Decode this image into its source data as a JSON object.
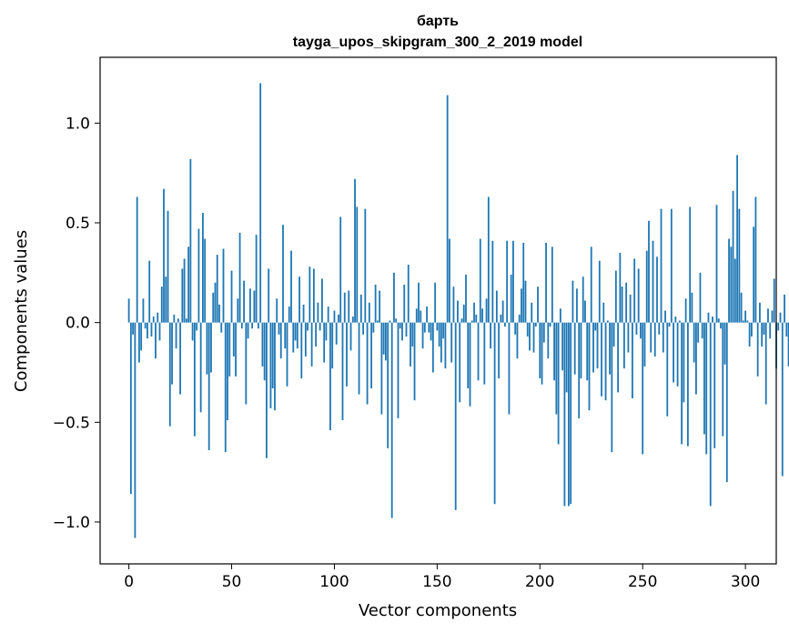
{
  "chart_data": {
    "type": "bar",
    "title": "барть",
    "subtitle": "tayga_upos_skipgram_300_2_2019 model",
    "xlabel": "Vector components",
    "ylabel": "Components values",
    "xlim": [
      -14,
      315
    ],
    "ylim": [
      -1.21,
      1.33
    ],
    "xticks": [
      0,
      50,
      100,
      150,
      200,
      250,
      300
    ],
    "yticks": [
      1.0,
      0.5,
      0.0,
      -0.5,
      -1.0
    ],
    "ytick_labels": [
      "1.0",
      "0.5",
      "0.0",
      "−0.5",
      "−1.0"
    ],
    "bar_color": "#1f77b4",
    "values": [
      0.12,
      -0.86,
      -0.06,
      -1.08,
      0.63,
      -0.2,
      -0.14,
      0.12,
      -0.03,
      -0.08,
      0.31,
      -0.07,
      0.03,
      -0.18,
      0.05,
      -0.09,
      0.18,
      0.67,
      0.23,
      0.56,
      -0.52,
      -0.31,
      0.04,
      -0.13,
      0.02,
      -0.36,
      0.27,
      0.32,
      0.02,
      0.38,
      0.82,
      -0.09,
      -0.57,
      -0.04,
      0.47,
      -0.45,
      0.55,
      0.42,
      -0.26,
      -0.64,
      -0.25,
      0.15,
      0.2,
      0.34,
      0.09,
      -0.05,
      0.37,
      -0.65,
      -0.49,
      -0.27,
      0.26,
      -0.17,
      -0.27,
      0.12,
      0.45,
      -0.03,
      0.21,
      -0.41,
      -0.08,
      0.17,
      -0.03,
      0.16,
      0.44,
      -0.03,
      1.2,
      -0.22,
      -0.29,
      -0.68,
      0.27,
      -0.43,
      -0.33,
      -0.44,
      0.12,
      -0.06,
      -0.18,
      0.49,
      -0.13,
      -0.32,
      0.08,
      0.36,
      -0.15,
      -0.09,
      -0.13,
      0.23,
      -0.28,
      0.09,
      -0.17,
      -0.04,
      0.28,
      -0.22,
      0.27,
      -0.12,
      0.1,
      -0.04,
      0.22,
      -0.2,
      -0.09,
      0.08,
      -0.54,
      -0.23,
      0.06,
      -0.11,
      0.04,
      0.53,
      -0.49,
      0.15,
      -0.32,
      0.16,
      -0.14,
      0.03,
      0.72,
      0.58,
      -0.36,
      0.14,
      -0.06,
      0.57,
      -0.41,
      0.1,
      -0.33,
      -0.05,
      0.19,
      0.01,
      0.16,
      -0.46,
      -0.16,
      -0.19,
      -0.63,
      0.01,
      -0.98,
      0.25,
      0.02,
      -0.48,
      -0.03,
      -0.09,
      0.19,
      -0.07,
      0.29,
      -0.22,
      -0.12,
      -0.39,
      0.07,
      0.2,
      0.06,
      -0.13,
      -0.05,
      0.08,
      -0.05,
      -0.09,
      -0.25,
      0.2,
      -0.04,
      -0.12,
      -0.2,
      -0.08,
      -0.23,
      1.14,
      0.42,
      -0.2,
      0.18,
      -0.94,
      0.11,
      -0.4,
      0.02,
      0.09,
      0.24,
      -0.33,
      -0.42,
      0.01,
      0.1,
      0.04,
      -0.29,
      0.42,
      0.07,
      -0.31,
      0.12,
      0.63,
      -0.13,
      0.41,
      -0.91,
      0.16,
      -0.28,
      0.04,
      0.11,
      -0.02,
      0.41,
      -0.46,
      0.24,
      0.41,
      -0.06,
      -0.18,
      0.04,
      0.17,
      0.4,
      0.21,
      -0.07,
      -0.14,
      0.1,
      -0.15,
      -0.02,
      0.18,
      -0.28,
      -0.31,
      -0.1,
      0.4,
      -0.18,
      -0.02,
      0.38,
      -0.29,
      -0.46,
      -0.61,
      0.07,
      -0.24,
      -0.92,
      -0.35,
      -0.92,
      -0.91,
      0.21,
      -0.26,
      0.17,
      -0.48,
      -0.28,
      0.23,
      0.11,
      -0.29,
      -0.44,
      0.38,
      -0.25,
      -0.04,
      -0.23,
      0.31,
      -0.37,
      0.1,
      -0.39,
      0.01,
      -0.26,
      -0.65,
      -0.12,
      0.26,
      -0.35,
      0.35,
      0.18,
      -0.23,
      0.2,
      -0.15,
      0.14,
      -0.38,
      0.32,
      -0.06,
      0.27,
      -0.08,
      -0.66,
      -0.22,
      0.36,
      0.51,
      -0.15,
      0.41,
      -0.17,
      0.33,
      -0.06,
      0.57,
      -0.15,
      0.06,
      -0.47,
      -0.02,
      0.57,
      -0.3,
      0.03,
      -0.32,
      0.01,
      -0.61,
      -0.4,
      0.12,
      -0.62,
      0.58,
      0.15,
      -0.2,
      -0.36,
      -0.1,
      0.25,
      -0.08,
      -0.56,
      -0.66,
      0.05,
      -0.92,
      0.03,
      -0.63,
      0.59,
      0.02,
      -0.03,
      -0.57,
      -0.21,
      -0.8,
      0.42,
      0.38,
      0.66,
      0.32,
      0.84,
      0.57,
      0.15,
      0.01,
      0.06,
      0.01,
      -0.12,
      -0.07,
      0.48,
      0.63,
      -0.27,
      0.1,
      -0.12,
      -0.06,
      -0.41,
      0.07,
      -0.08,
      0.06,
      0.22,
      -0.23,
      -0.04,
      0.05,
      -0.77,
      0.14,
      -0.07,
      -0.22
    ]
  }
}
